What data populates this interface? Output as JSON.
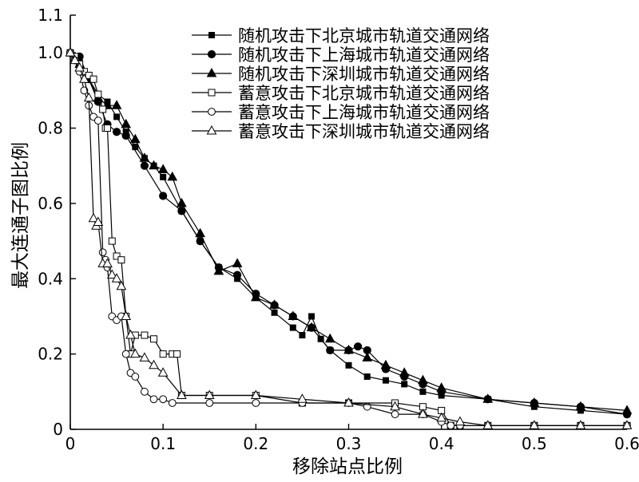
{
  "chart_data": {
    "type": "line",
    "xlabel": "移除站点比例",
    "ylabel": "最大连通子图比例",
    "xlim": [
      0,
      0.6
    ],
    "ylim": [
      0,
      1.1
    ],
    "x_ticks": [
      0,
      0.1,
      0.2,
      0.3,
      0.4,
      0.5,
      0.6
    ],
    "x_tick_labels": [
      "0",
      "0.1",
      "0.2",
      "0.3",
      "0.4",
      "0.5",
      "0.6"
    ],
    "y_ticks": [
      0,
      0.2,
      0.4,
      0.6,
      0.8,
      1.0,
      1.1
    ],
    "y_tick_labels": [
      "0",
      "0.2",
      "0.4",
      "0.6",
      "0.8",
      "1.0",
      "1.1"
    ],
    "grid": false,
    "legend_position": "top-right",
    "series": [
      {
        "name": "随机攻击下北京城市轨道交通网络",
        "marker": "square-filled",
        "x": [
          0,
          0.01,
          0.02,
          0.03,
          0.04,
          0.05,
          0.06,
          0.07,
          0.08,
          0.09,
          0.1,
          0.12,
          0.14,
          0.16,
          0.18,
          0.2,
          0.22,
          0.24,
          0.25,
          0.26,
          0.27,
          0.28,
          0.3,
          0.32,
          0.34,
          0.36,
          0.38,
          0.4,
          0.45,
          0.5,
          0.55,
          0.6
        ],
        "y": [
          1.0,
          0.98,
          0.93,
          0.89,
          0.87,
          0.83,
          0.79,
          0.75,
          0.72,
          0.7,
          0.67,
          0.58,
          0.5,
          0.43,
          0.4,
          0.35,
          0.31,
          0.27,
          0.25,
          0.3,
          0.24,
          0.21,
          0.17,
          0.14,
          0.13,
          0.12,
          0.1,
          0.09,
          0.08,
          0.06,
          0.05,
          0.04
        ]
      },
      {
        "name": "随机攻击下上海城市轨道交通网络",
        "marker": "circle-filled",
        "x": [
          0,
          0.01,
          0.02,
          0.03,
          0.04,
          0.05,
          0.06,
          0.08,
          0.1,
          0.12,
          0.14,
          0.16,
          0.18,
          0.2,
          0.22,
          0.24,
          0.26,
          0.28,
          0.3,
          0.31,
          0.32,
          0.34,
          0.36,
          0.38,
          0.4,
          0.45,
          0.5,
          0.55,
          0.6
        ],
        "y": [
          1.0,
          0.99,
          0.93,
          0.87,
          0.81,
          0.79,
          0.78,
          0.7,
          0.62,
          0.58,
          0.5,
          0.43,
          0.41,
          0.36,
          0.33,
          0.3,
          0.27,
          0.21,
          0.21,
          0.22,
          0.21,
          0.16,
          0.14,
          0.12,
          0.1,
          0.08,
          0.07,
          0.06,
          0.04
        ]
      },
      {
        "name": "随机攻击下深圳城市轨道交通网络",
        "marker": "triangle-filled",
        "x": [
          0,
          0.01,
          0.02,
          0.03,
          0.04,
          0.05,
          0.06,
          0.07,
          0.08,
          0.09,
          0.1,
          0.11,
          0.12,
          0.14,
          0.16,
          0.18,
          0.2,
          0.22,
          0.24,
          0.26,
          0.28,
          0.3,
          0.32,
          0.34,
          0.36,
          0.38,
          0.4,
          0.45,
          0.5,
          0.55,
          0.6
        ],
        "y": [
          1.0,
          0.97,
          0.93,
          0.88,
          0.86,
          0.86,
          0.81,
          0.77,
          0.72,
          0.7,
          0.69,
          0.67,
          0.6,
          0.52,
          0.42,
          0.44,
          0.35,
          0.33,
          0.3,
          0.27,
          0.24,
          0.21,
          0.19,
          0.17,
          0.15,
          0.13,
          0.11,
          0.08,
          0.07,
          0.06,
          0.05
        ]
      },
      {
        "name": "蓄意攻击下北京城市轨道交通网络",
        "marker": "square-open",
        "x": [
          0,
          0.005,
          0.01,
          0.015,
          0.02,
          0.025,
          0.03,
          0.035,
          0.038,
          0.04,
          0.045,
          0.05,
          0.055,
          0.06,
          0.065,
          0.07,
          0.08,
          0.09,
          0.1,
          0.11,
          0.115,
          0.12,
          0.15,
          0.2,
          0.25,
          0.3,
          0.35,
          0.38,
          0.4,
          0.41,
          0.42,
          0.45,
          0.5,
          0.55,
          0.6
        ],
        "y": [
          1.0,
          0.99,
          0.97,
          0.95,
          0.94,
          0.93,
          0.89,
          0.85,
          0.8,
          0.8,
          0.5,
          0.46,
          0.45,
          0.3,
          0.2,
          0.25,
          0.25,
          0.24,
          0.2,
          0.2,
          0.2,
          0.09,
          0.09,
          0.09,
          0.07,
          0.07,
          0.07,
          0.06,
          0.05,
          0.01,
          0.01,
          0.01,
          0.01,
          0.01,
          0.01
        ]
      },
      {
        "name": "蓄意攻击下上海城市轨道交通网络",
        "marker": "circle-open",
        "x": [
          0,
          0.005,
          0.01,
          0.015,
          0.02,
          0.025,
          0.03,
          0.035,
          0.038,
          0.04,
          0.045,
          0.05,
          0.055,
          0.06,
          0.065,
          0.07,
          0.08,
          0.09,
          0.1,
          0.11,
          0.15,
          0.2,
          0.25,
          0.3,
          0.32,
          0.35,
          0.38,
          0.4,
          0.41,
          0.42,
          0.45,
          0.5,
          0.55,
          0.6
        ],
        "y": [
          1.0,
          0.98,
          0.95,
          0.9,
          0.86,
          0.83,
          0.82,
          0.47,
          0.45,
          0.43,
          0.3,
          0.29,
          0.3,
          0.2,
          0.15,
          0.14,
          0.1,
          0.08,
          0.08,
          0.07,
          0.07,
          0.07,
          0.07,
          0.07,
          0.06,
          0.04,
          0.04,
          0.02,
          0.01,
          0.01,
          0.01,
          0.01,
          0.01,
          0.01
        ]
      },
      {
        "name": "蓄意攻击下深圳城市轨道交通网络",
        "marker": "triangle-open",
        "x": [
          0,
          0.005,
          0.01,
          0.015,
          0.02,
          0.025,
          0.028,
          0.03,
          0.035,
          0.04,
          0.045,
          0.05,
          0.055,
          0.06,
          0.065,
          0.07,
          0.08,
          0.09,
          0.1,
          0.12,
          0.15,
          0.2,
          0.25,
          0.3,
          0.35,
          0.38,
          0.4,
          0.42,
          0.45,
          0.5,
          0.55,
          0.6
        ],
        "y": [
          1.0,
          0.98,
          0.96,
          0.93,
          0.88,
          0.56,
          0.54,
          0.55,
          0.44,
          0.44,
          0.41,
          0.4,
          0.38,
          0.3,
          0.25,
          0.2,
          0.19,
          0.17,
          0.15,
          0.09,
          0.09,
          0.09,
          0.08,
          0.07,
          0.06,
          0.04,
          0.03,
          0.02,
          0.01,
          0.01,
          0.01,
          0.01
        ]
      }
    ]
  }
}
